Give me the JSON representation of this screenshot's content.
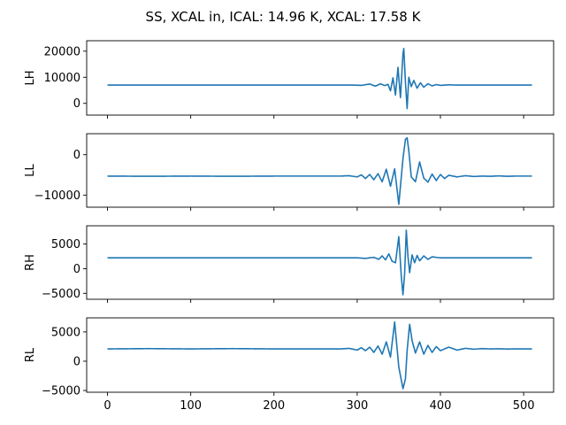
{
  "figure": {
    "title": "SS, XCAL in, ICAL: 14.96 K, XCAL: 17.58 K"
  },
  "chart_data": [
    {
      "type": "line",
      "name": "LH",
      "ylabel": "LH",
      "xlim": [
        -25,
        536
      ],
      "ylim": [
        -4500,
        24000
      ],
      "xticks": [
        0,
        100,
        200,
        300,
        400,
        500
      ],
      "yticks": [
        0,
        10000,
        20000
      ],
      "ytick_labels": [
        "0",
        "10000",
        "20000"
      ],
      "show_xtick_labels": false,
      "baseline": 7000,
      "x": [
        0,
        100,
        200,
        295,
        305,
        315,
        322,
        328,
        333,
        337,
        340,
        343,
        346,
        349,
        352,
        355,
        356,
        358,
        360,
        362,
        365,
        368,
        372,
        376,
        380,
        385,
        390,
        395,
        400,
        410,
        420,
        510
      ],
      "y": [
        7000,
        7000,
        7000,
        7000,
        6900,
        7400,
        6600,
        7500,
        6800,
        7300,
        4800,
        9800,
        3200,
        13800,
        2200,
        19000,
        21000,
        8000,
        -2000,
        10000,
        6400,
        8800,
        5800,
        7900,
        6200,
        7500,
        6700,
        7200,
        6900,
        7100,
        7000,
        7000
      ]
    },
    {
      "type": "line",
      "name": "LL",
      "ylabel": "LL",
      "xlim": [
        -25,
        536
      ],
      "ylim": [
        -13000,
        5200
      ],
      "xticks": [
        0,
        100,
        200,
        300,
        400,
        500
      ],
      "yticks": [
        -10000,
        0
      ],
      "ytick_labels": [
        "−10000",
        "0"
      ],
      "show_xtick_labels": false,
      "baseline": -5300,
      "x": [
        0,
        50,
        100,
        150,
        200,
        250,
        280,
        290,
        300,
        305,
        310,
        315,
        320,
        325,
        330,
        335,
        340,
        345,
        350,
        355,
        358,
        360,
        362,
        365,
        370,
        375,
        380,
        385,
        390,
        395,
        400,
        405,
        410,
        420,
        430,
        440,
        450,
        460,
        470,
        480,
        490,
        500,
        510
      ],
      "y": [
        -5300,
        -5350,
        -5300,
        -5350,
        -5300,
        -5300,
        -5300,
        -5200,
        -5500,
        -5000,
        -5900,
        -4900,
        -6200,
        -4700,
        -6700,
        -3600,
        -7800,
        -3500,
        -12300,
        -1000,
        3800,
        4200,
        1000,
        -5500,
        -6700,
        -1800,
        -5800,
        -6800,
        -4800,
        -6400,
        -4900,
        -5900,
        -5100,
        -5500,
        -5200,
        -5400,
        -5300,
        -5350,
        -5250,
        -5350,
        -5300,
        -5300,
        -5300
      ]
    },
    {
      "type": "line",
      "name": "RH",
      "ylabel": "RH",
      "xlim": [
        -25,
        536
      ],
      "ylim": [
        -6200,
        8700
      ],
      "xticks": [
        0,
        100,
        200,
        300,
        400,
        500
      ],
      "yticks": [
        -5000,
        0,
        5000
      ],
      "ytick_labels": [
        "−5000",
        "0",
        "5000"
      ],
      "show_xtick_labels": false,
      "baseline": 2200,
      "x": [
        0,
        100,
        200,
        300,
        310,
        320,
        326,
        330,
        334,
        338,
        342,
        346,
        350,
        353,
        355,
        357,
        359,
        361,
        363,
        366,
        369,
        372,
        375,
        380,
        385,
        390,
        400,
        510
      ],
      "y": [
        2200,
        2200,
        2200,
        2200,
        2100,
        2300,
        1900,
        2600,
        1800,
        3000,
        1500,
        1200,
        6500,
        -1500,
        -5300,
        -1000,
        7800,
        2500,
        -800,
        2800,
        1200,
        2700,
        1600,
        2600,
        1900,
        2400,
        2200,
        2200
      ]
    },
    {
      "type": "line",
      "name": "RL",
      "ylabel": "RL",
      "xlim": [
        -25,
        536
      ],
      "ylim": [
        -5300,
        7400
      ],
      "xticks": [
        0,
        100,
        200,
        300,
        400,
        500
      ],
      "xtick_labels": [
        "0",
        "100",
        "200",
        "300",
        "400",
        "500"
      ],
      "yticks": [
        -5000,
        0,
        5000
      ],
      "ytick_labels": [
        "−5000",
        "0",
        "5000"
      ],
      "show_xtick_labels": true,
      "baseline": 2100,
      "x": [
        0,
        50,
        100,
        150,
        200,
        250,
        280,
        290,
        300,
        305,
        310,
        315,
        320,
        325,
        330,
        335,
        340,
        345,
        350,
        355,
        358,
        360,
        363,
        366,
        370,
        375,
        380,
        385,
        390,
        395,
        400,
        410,
        420,
        430,
        440,
        450,
        460,
        470,
        480,
        490,
        500,
        510
      ],
      "y": [
        2100,
        2150,
        2100,
        2150,
        2100,
        2100,
        2100,
        2200,
        1900,
        2300,
        1800,
        2400,
        1500,
        2600,
        1200,
        3300,
        700,
        6700,
        -1000,
        -4700,
        -3000,
        1800,
        6300,
        3500,
        1400,
        3300,
        1200,
        2700,
        1500,
        2500,
        1800,
        2400,
        1900,
        2200,
        2050,
        2150,
        2100,
        2120,
        2080,
        2100,
        2100,
        2100
      ]
    }
  ]
}
